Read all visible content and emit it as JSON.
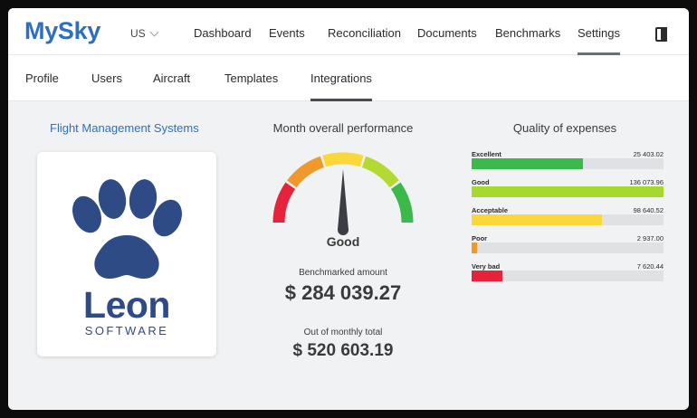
{
  "app": {
    "logo": "MySky",
    "region": "US"
  },
  "main_nav": [
    "Dashboard",
    "Events",
    "Reconciliation",
    "Documents",
    "Benchmarks",
    "Settings"
  ],
  "main_nav_active": "Settings",
  "sub_nav": [
    "Profile",
    "Users",
    "Aircraft",
    "Templates",
    "Integrations"
  ],
  "sub_nav_active": "Integrations",
  "fms": {
    "title": "Flight Management Systems",
    "logo_word": "Leon",
    "logo_sub": "SOFTWARE",
    "logo_color": "#2f4b86"
  },
  "performance": {
    "title": "Month overall performance",
    "rating": "Good",
    "gauge_colors": [
      "#e5233a",
      "#f0982c",
      "#fbd73a",
      "#b3d934",
      "#3cb94a"
    ],
    "benchmarked_label": "Benchmarked amount",
    "benchmarked_value": "$ 284 039.27",
    "total_label": "Out of monthly total",
    "total_value": "$ 520 603.19"
  },
  "quality": {
    "title": "Quality of expenses",
    "items": [
      {
        "label": "Excellent",
        "value": "25 403.02",
        "fill": 0.58,
        "color": "#3cb94a"
      },
      {
        "label": "Good",
        "value": "136 073.96",
        "fill": 1.0,
        "color": "#a6d92f"
      },
      {
        "label": "Acceptable",
        "value": "98 640.52",
        "fill": 0.68,
        "color": "#fbd73a"
      },
      {
        "label": "Poor",
        "value": "2 937.00",
        "fill": 0.03,
        "color": "#f0982c"
      },
      {
        "label": "Very bad",
        "value": "7 620.44",
        "fill": 0.16,
        "color": "#e5233a"
      }
    ]
  }
}
